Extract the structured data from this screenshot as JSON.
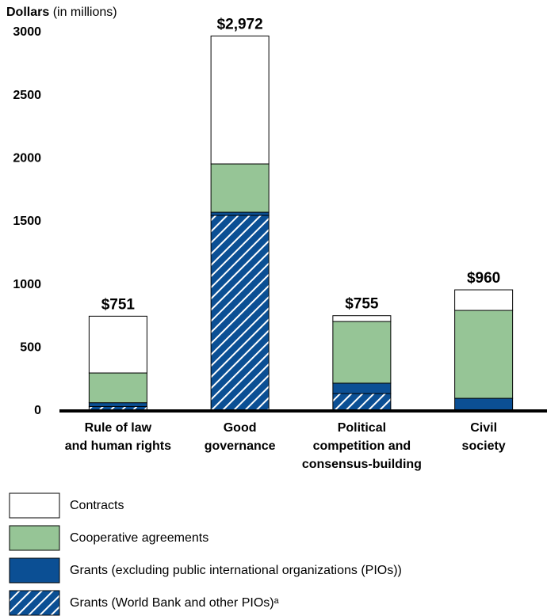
{
  "chart_data": {
    "type": "stacked_bar",
    "y_axis_label": "Dollars",
    "y_axis_unit": "(in millions)",
    "categories": [
      [
        "Rule of law",
        "and human rights"
      ],
      [
        "Good",
        "governance"
      ],
      [
        "Political",
        "competition and",
        "consensus-building"
      ],
      [
        "Civil",
        "society"
      ]
    ],
    "series": [
      {
        "name": "Grants (World Bank and other PIOs)ᵃ",
        "color": "#0b4f94",
        "hatch": true,
        "values": [
          35,
          1550,
          138,
          0
        ]
      },
      {
        "name": "Grants (excluding public international organizations (PIOs))",
        "color": "#0b4f94",
        "values": [
          30,
          25,
          82,
          100
        ]
      },
      {
        "name": "Cooperative agreements",
        "color": "#96c596",
        "values": [
          236,
          383,
          489,
          697
        ]
      },
      {
        "name": "Contracts",
        "color": "#ffffff",
        "values": [
          450,
          1014,
          46,
          163
        ]
      }
    ],
    "totals": [
      751,
      2972,
      755,
      960
    ],
    "total_labels": [
      "$751",
      "$2,972",
      "$755",
      "$960"
    ],
    "ylim": [
      0,
      3000
    ],
    "yticks": [
      0,
      500,
      1000,
      1500,
      2000,
      2500,
      3000
    ],
    "grid": false
  }
}
